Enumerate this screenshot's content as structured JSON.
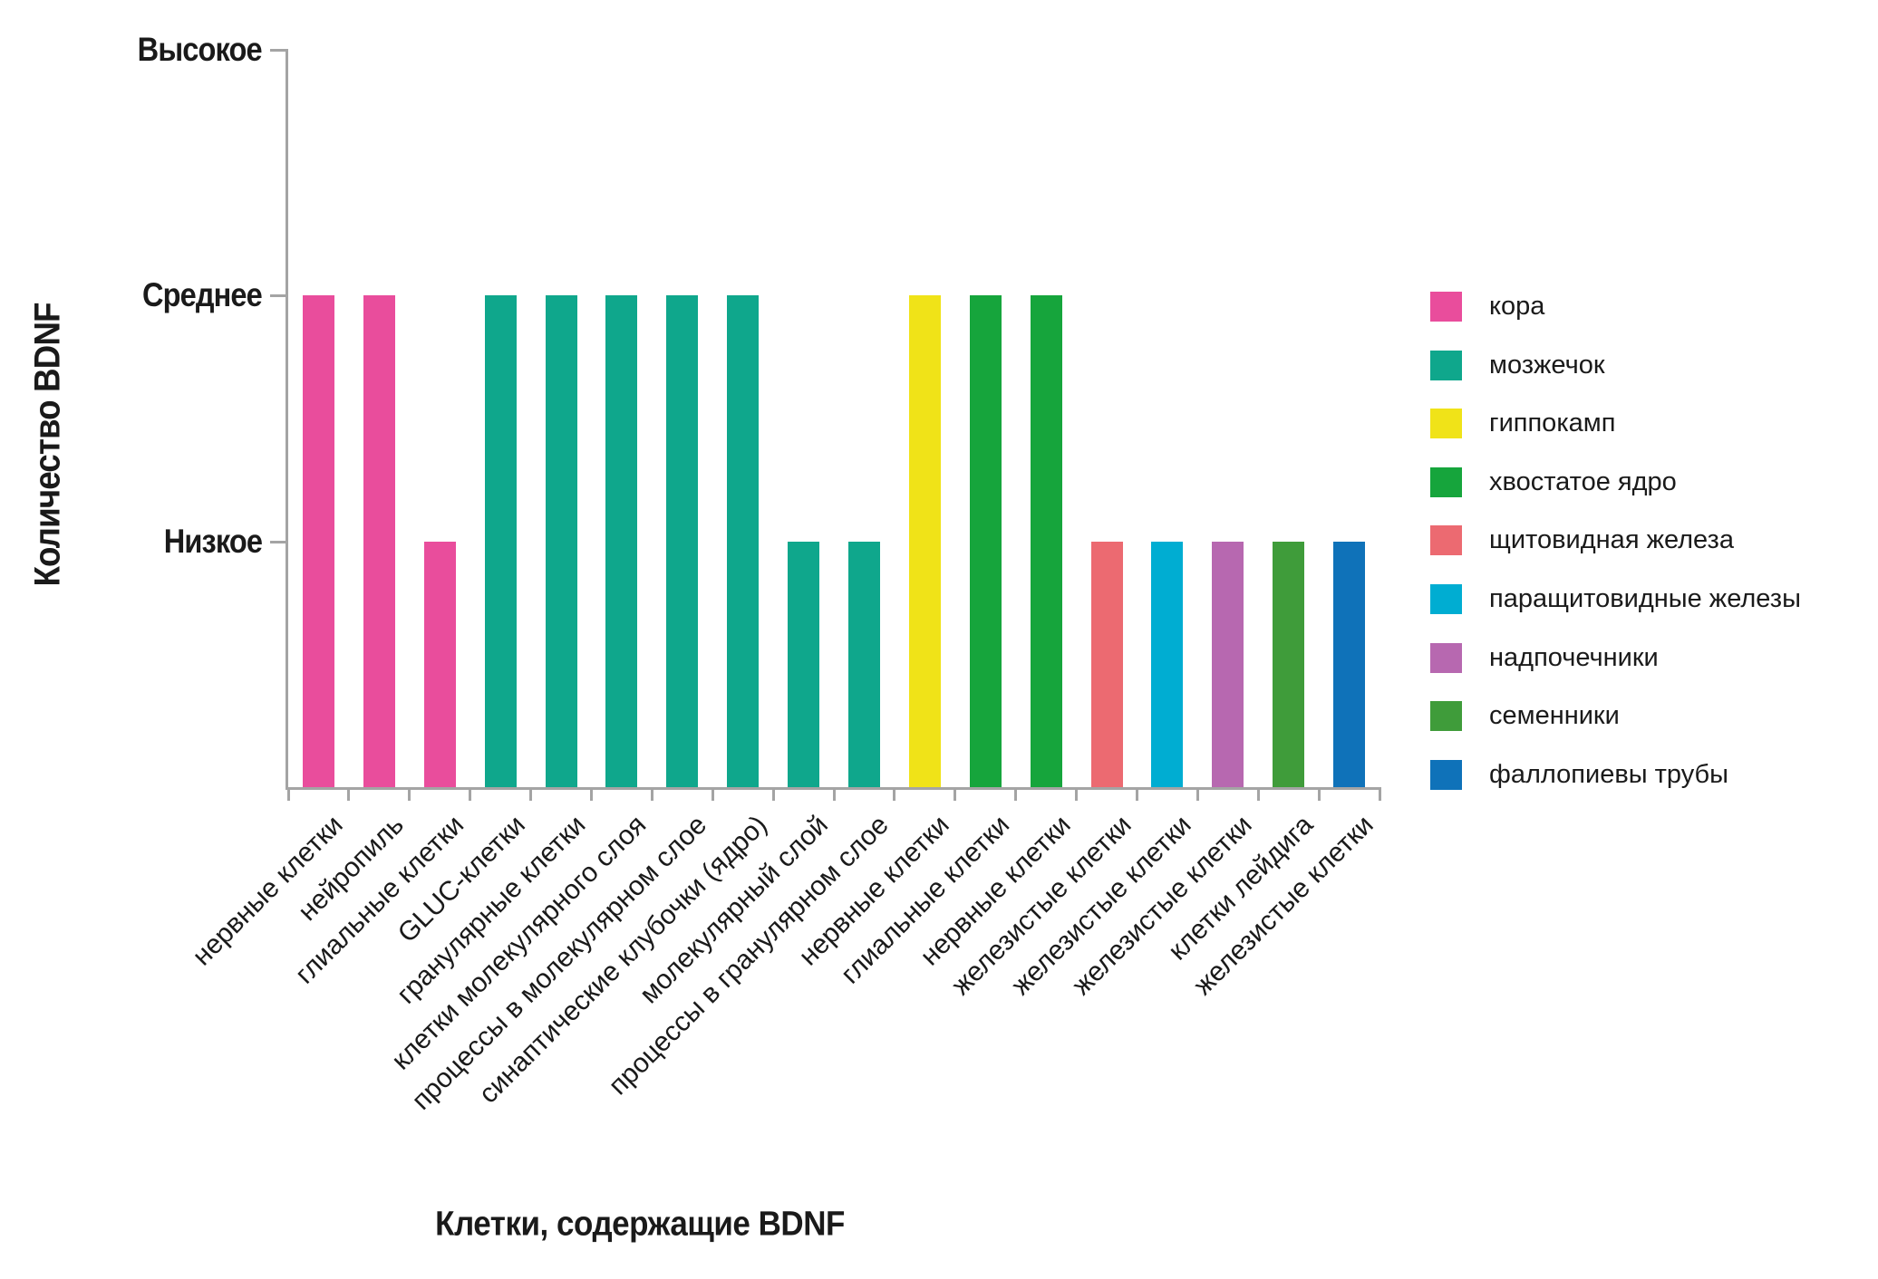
{
  "figure": {
    "background": "#ffffff",
    "axis_color": "#a4a4a4",
    "text_color": "#1a1a1a"
  },
  "chart_data": {
    "type": "bar",
    "title": "",
    "xlabel": "Клетки, содержащие BDNF",
    "ylabel": "Количество BDNF",
    "y_axis": {
      "tick_labels": [
        "Высокое",
        "Среднее",
        "Низкое"
      ],
      "tick_values": [
        3,
        2,
        1
      ],
      "ylim": [
        0,
        3
      ],
      "grid": false
    },
    "legend": {
      "position": "right",
      "entries": [
        {
          "label": "кора",
          "color": "#E94D9C"
        },
        {
          "label": "мозжечок",
          "color": "#0FA78C"
        },
        {
          "label": "гиппокамп",
          "color": "#F0E318"
        },
        {
          "label": "хвостатое ядро",
          "color": "#16A53C"
        },
        {
          "label": "щитовидная железа",
          "color": "#EC6A71"
        },
        {
          "label": "паращитовидные железы",
          "color": "#00ADD2"
        },
        {
          "label": "надпочечники",
          "color": "#B768B0"
        },
        {
          "label": "семенники",
          "color": "#3F9C3A"
        },
        {
          "label": "фаллопиевы трубы",
          "color": "#0F72B9"
        }
      ]
    },
    "categories": [
      {
        "label": "нервные клетки",
        "series": "кора",
        "value": 2,
        "level": "Среднее"
      },
      {
        "label": "нейропиль",
        "series": "кора",
        "value": 2,
        "level": "Среднее"
      },
      {
        "label": "глиальные клетки",
        "series": "кора",
        "value": 1,
        "level": "Низкое"
      },
      {
        "label": "GLUC-клетки",
        "series": "мозжечок",
        "value": 2,
        "level": "Среднее"
      },
      {
        "label": "гранулярные клетки",
        "series": "мозжечок",
        "value": 2,
        "level": "Среднее"
      },
      {
        "label": "клетки молекулярного слоя",
        "series": "мозжечок",
        "value": 2,
        "level": "Среднее"
      },
      {
        "label": "процессы в молекулярном слое",
        "series": "мозжечок",
        "value": 2,
        "level": "Среднее"
      },
      {
        "label": "синаптические клубочки (ядро)",
        "series": "мозжечок",
        "value": 2,
        "level": "Среднее"
      },
      {
        "label": "молекулярный слой",
        "series": "мозжечок",
        "value": 1,
        "level": "Низкое"
      },
      {
        "label": "процессы в гранулярном слое",
        "series": "мозжечок",
        "value": 1,
        "level": "Низкое"
      },
      {
        "label": "нервные клетки",
        "series": "гиппокамп",
        "value": 2,
        "level": "Среднее"
      },
      {
        "label": "глиальные клетки",
        "series": "хвостатое ядро",
        "value": 2,
        "level": "Среднее"
      },
      {
        "label": "нервные клетки",
        "series": "хвостатое ядро",
        "value": 2,
        "level": "Среднее"
      },
      {
        "label": "железистые клетки",
        "series": "щитовидная железа",
        "value": 1,
        "level": "Низкое"
      },
      {
        "label": "железистые клетки",
        "series": "паращитовидные железы",
        "value": 1,
        "level": "Низкое"
      },
      {
        "label": "железистые клетки",
        "series": "надпочечники",
        "value": 1,
        "level": "Низкое"
      },
      {
        "label": "клетки лейдига",
        "series": "семенники",
        "value": 1,
        "level": "Низкое"
      },
      {
        "label": "железистые клетки",
        "series": "фаллопиевы трубы",
        "value": 1,
        "level": "Низкое"
      }
    ]
  }
}
